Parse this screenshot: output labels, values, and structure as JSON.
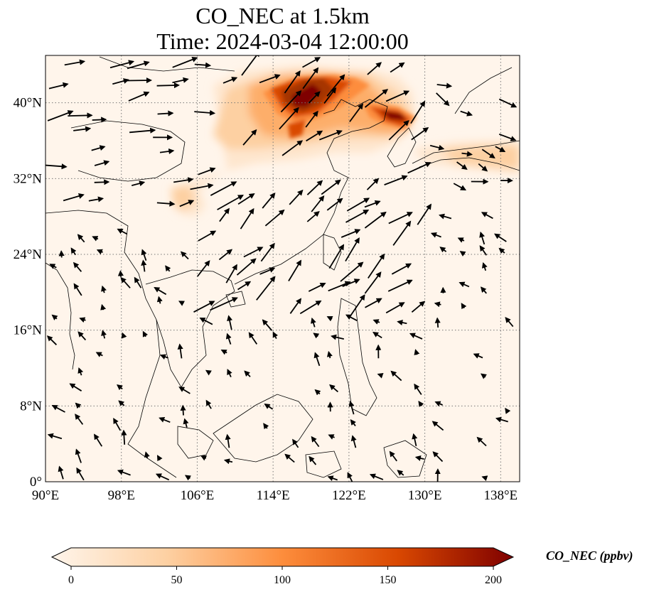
{
  "title": {
    "line1": "CO_NEC at 1.5km",
    "line2": "Time: 2024-03-04 12:00:00"
  },
  "map": {
    "extent": {
      "lon": [
        90,
        140
      ],
      "lat": [
        0,
        45
      ]
    },
    "lon_ticks": [
      {
        "value": 90,
        "label": "90°E"
      },
      {
        "value": 98,
        "label": "98°E"
      },
      {
        "value": 106,
        "label": "106°E"
      },
      {
        "value": 114,
        "label": "114°E"
      },
      {
        "value": 122,
        "label": "122°E"
      },
      {
        "value": 130,
        "label": "130°E"
      },
      {
        "value": 138,
        "label": "138°E"
      }
    ],
    "lat_ticks": [
      {
        "value": 0,
        "label": "0°"
      },
      {
        "value": 8,
        "label": "8°N"
      },
      {
        "value": 16,
        "label": "16°N"
      },
      {
        "value": 24,
        "label": "24°N"
      },
      {
        "value": 32,
        "label": "32°N"
      },
      {
        "value": 40,
        "label": "40°N"
      }
    ],
    "gridlines": "dotted",
    "background_color": "#fff5eb",
    "coastline_color": "#000000",
    "wind_arrows": "black quiver arrows"
  },
  "colorbar": {
    "label": "CO_NEC (ppbv)",
    "min": 0,
    "max": 200,
    "ticks": [
      {
        "value": 0,
        "label": "0"
      },
      {
        "value": 50,
        "label": "50"
      },
      {
        "value": 100,
        "label": "100"
      },
      {
        "value": 150,
        "label": "150"
      },
      {
        "value": 200,
        "label": "200"
      }
    ],
    "colormap": [
      "#fff5eb",
      "#fdd0a2",
      "#fd8d3c",
      "#d94801",
      "#7f0000"
    ],
    "extend": "both"
  }
}
